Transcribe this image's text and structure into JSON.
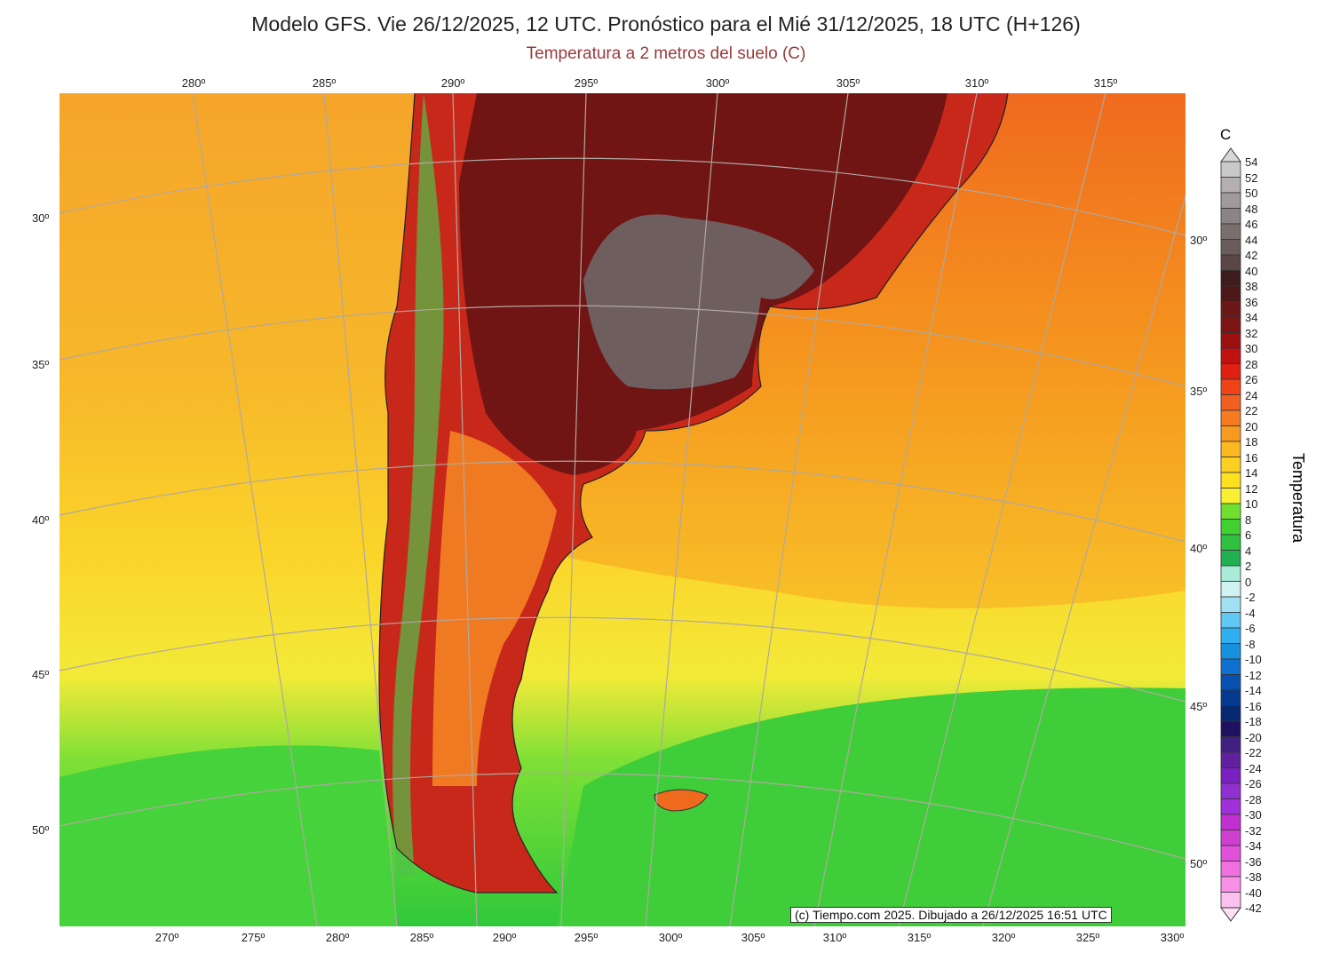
{
  "title": "Modelo GFS. Vie 26/12/2025, 12 UTC. Pronóstico para el Mié 31/12/2025, 18 UTC (H+126)",
  "subtitle": "Temperatura a 2 metros del suelo (C)",
  "top_lon_labels": [
    "280º",
    "285º",
    "290º",
    "295º",
    "300º",
    "305º",
    "310º",
    "315º"
  ],
  "bottom_lon_labels": [
    "270º",
    "275º",
    "280º",
    "285º",
    "290º",
    "295º",
    "300º",
    "305º",
    "310º",
    "315º",
    "320º",
    "325º",
    "330º"
  ],
  "left_lat_labels": [
    "30º",
    "35º",
    "40º",
    "45º",
    "50º"
  ],
  "right_lat_labels": [
    "30º",
    "35º",
    "40º",
    "45º",
    "50º"
  ],
  "credit": "(c) Tiempo.com 2025. Dibujado a 26/12/2025 16:51 UTC",
  "colorbar": {
    "unit": "C",
    "title": "Temperatura",
    "labels": [
      "54",
      "52",
      "50",
      "48",
      "46",
      "44",
      "42",
      "40",
      "38",
      "36",
      "34",
      "32",
      "30",
      "28",
      "26",
      "24",
      "22",
      "20",
      "18",
      "16",
      "14",
      "12",
      "10",
      "8",
      "6",
      "4",
      "2",
      "0",
      "-2",
      "-4",
      "-6",
      "-8",
      "-10",
      "-12",
      "-14",
      "-16",
      "-18",
      "-20",
      "-22",
      "-24",
      "-26",
      "-28",
      "-30",
      "-32",
      "-34",
      "-36",
      "-38",
      "-40",
      "-42"
    ],
    "colors": [
      "#c9c9c9",
      "#b4b0b0",
      "#a09a9a",
      "#8c8484",
      "#7a6f6f",
      "#6a5c5c",
      "#5a4646",
      "#3c1c1c",
      "#4c1818",
      "#6a1818",
      "#7c1414",
      "#9c1010",
      "#c01010",
      "#e02010",
      "#f04418",
      "#f06020",
      "#f57a20",
      "#f89a20",
      "#fbb820",
      "#fcd020",
      "#fde020",
      "#f8f030",
      "#70e030",
      "#40d030",
      "#30c040",
      "#20b050",
      "#a8ecd8",
      "#d0f2f2",
      "#a0e0f2",
      "#60c8f2",
      "#30b0f0",
      "#1890e0",
      "#1070d0",
      "#0850b0",
      "#063a90",
      "#052870",
      "#201060",
      "#402080",
      "#6020a0",
      "#7a20c0",
      "#9030d0",
      "#a030d8",
      "#c030d0",
      "#d040d0",
      "#e050d8",
      "#f070e0",
      "#f890e8",
      "#fcc0f0"
    ]
  }
}
